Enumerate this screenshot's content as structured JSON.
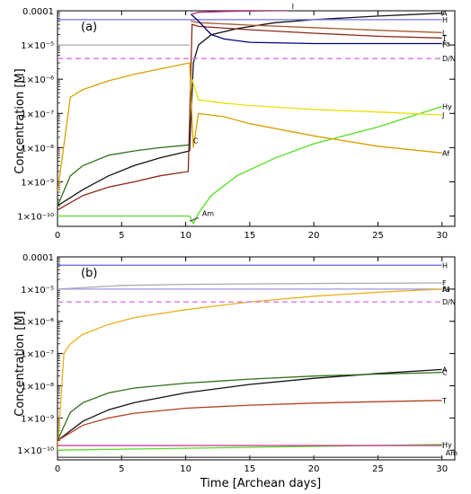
{
  "figure": {
    "xlabel": "Time [Archean days]",
    "ylabel_a": "Concentration [M]",
    "ylabel_b": "Concentration [M]"
  },
  "chart_data": [
    {
      "type": "line",
      "panel": "(a)",
      "yscale": "log",
      "xlim": [
        0,
        31
      ],
      "ylim": [
        5e-11,
        0.0001
      ],
      "x_ticks": [
        0,
        5,
        10,
        15,
        20,
        25,
        30
      ],
      "x_tick_labels": [
        "0",
        "5",
        "10",
        "15",
        "20",
        "25",
        "30"
      ],
      "y_ticks": [
        1e-10,
        1e-09,
        1e-08,
        1e-07,
        1e-06,
        1e-05,
        0.0001
      ],
      "y_tick_labels": [
        "1×10⁻¹⁰",
        "1×10⁻⁹",
        "1×10⁻⁸",
        "1×10⁻⁷",
        "1×10⁻⁶",
        "1×10⁻⁵",
        "0.0001"
      ],
      "series": [
        {
          "name": "A",
          "color": "#111111",
          "x": [
            0,
            2,
            4,
            6,
            8,
            10.3,
            10.6,
            11,
            12,
            14,
            17,
            20,
            25,
            30
          ],
          "y": [
            2e-10,
            6e-10,
            1.5e-09,
            3e-09,
            5e-09,
            8e-09,
            3e-06,
            1e-05,
            2e-05,
            3e-05,
            4.5e-05,
            5.5e-05,
            7e-05,
            8.5e-05
          ]
        },
        {
          "name": "H",
          "color": "#6f6fef",
          "x": [
            0,
            30
          ],
          "y": [
            5.5e-05,
            5.5e-05
          ]
        },
        {
          "name": "L",
          "color": "#a55a2a",
          "x": [
            10.4,
            11,
            15,
            20,
            25,
            30
          ],
          "y": [
            5e-05,
            4.5e-05,
            3.8e-05,
            3.2e-05,
            2.7e-05,
            2.3e-05
          ]
        },
        {
          "name": "T",
          "color": "#8a2a1a",
          "x": [
            0,
            2,
            4,
            6,
            8,
            10.2,
            10.5,
            11,
            15,
            20,
            25,
            30
          ],
          "y": [
            1.5e-10,
            4e-10,
            7e-10,
            1e-09,
            1.5e-09,
            2e-09,
            4e-05,
            3.5e-05,
            2.8e-05,
            2.2e-05,
            1.8e-05,
            1.6e-05
          ]
        },
        {
          "name": "Fa",
          "color": "#00007a",
          "x": [
            10.4,
            11,
            12,
            13,
            15,
            20,
            25,
            30
          ],
          "y": [
            8e-05,
            5e-05,
            2e-05,
            1.5e-05,
            1.2e-05,
            1.1e-05,
            1.1e-05,
            1.1e-05
          ]
        },
        {
          "name": "D/N",
          "color": "#d070e0",
          "dash": true,
          "x": [
            0,
            30
          ],
          "y": [
            4e-06,
            4e-06
          ]
        },
        {
          "name": "Hy",
          "color": "#55dd22",
          "x": [
            0,
            10.3,
            10.6,
            11,
            12,
            14,
            17,
            20,
            25,
            30
          ],
          "y": [
            1e-10,
            1e-10,
            6e-11,
            1.2e-10,
            4e-10,
            1.5e-09,
            5e-09,
            1.3e-08,
            4e-08,
            1.6e-07
          ]
        },
        {
          "name": "J",
          "color": "#e8e000",
          "x": [
            10.5,
            11,
            13,
            15,
            20,
            25,
            30
          ],
          "y": [
            1e-06,
            2.5e-07,
            2e-07,
            1.7e-07,
            1.3e-07,
            1.1e-07,
            9e-08
          ]
        },
        {
          "name": "Af",
          "color": "#d8a000",
          "x": [
            0,
            1,
            2,
            4,
            6,
            8,
            10.3,
            10.6,
            11,
            13,
            15,
            20,
            25,
            30
          ],
          "y": [
            5e-10,
            3e-07,
            5e-07,
            9e-07,
            1.4e-06,
            2e-06,
            3e-06,
            1e-08,
            1e-07,
            8e-08,
            5e-08,
            2.2e-08,
            1.1e-08,
            7e-09
          ]
        },
        {
          "name": "I",
          "color": "#c62d8a",
          "x": [
            10.5,
            11,
            13,
            15,
            17,
            18
          ],
          "y": [
            8e-05,
            9e-05,
            9.5e-05,
            9.8e-05,
            0.0001,
            0.0001
          ]
        },
        {
          "name": "C",
          "color": "#2f6f1a",
          "x": [
            0,
            1,
            2,
            4,
            6,
            8,
            10.3
          ],
          "y": [
            2e-10,
            1.5e-09,
            3e-09,
            6e-09,
            8e-09,
            1e-08,
            1.2e-08
          ]
        },
        {
          "name": "F",
          "color": "#aaaaaa",
          "x": [
            0,
            10.3
          ],
          "y": [
            1e-05,
            1e-05
          ]
        },
        {
          "name": "Am",
          "color": "#555555",
          "x": [
            10.3,
            11
          ],
          "y": [
            7e-11,
            9e-11
          ]
        }
      ],
      "labels_right": [
        "A",
        "H",
        "L",
        "T",
        "Fa",
        "D/N",
        "Hy",
        "J",
        "Af"
      ],
      "labels_inline": [
        "C",
        "I",
        "Am"
      ]
    },
    {
      "type": "line",
      "panel": "(b)",
      "yscale": "log",
      "xlim": [
        0,
        31
      ],
      "ylim": [
        5e-11,
        0.0001
      ],
      "x_ticks": [
        0,
        5,
        10,
        15,
        20,
        25,
        30
      ],
      "x_tick_labels": [
        "0",
        "5",
        "10",
        "15",
        "20",
        "25",
        "30"
      ],
      "y_ticks": [
        1e-10,
        1e-09,
        1e-08,
        1e-07,
        1e-06,
        1e-05,
        0.0001
      ],
      "y_tick_labels": [
        "1×10⁻¹⁰",
        "1×10⁻⁹",
        "1×10⁻⁸",
        "1×10⁻⁷",
        "1×10⁻⁶",
        "1×10⁻⁵",
        "0.0001"
      ],
      "series": [
        {
          "name": "H",
          "color": "#6f6fef",
          "x": [
            0,
            30
          ],
          "y": [
            5.5e-05,
            5.5e-05
          ]
        },
        {
          "name": "F",
          "color": "#aaaaaa",
          "x": [
            0,
            5,
            10,
            20,
            30
          ],
          "y": [
            1e-05,
            1.3e-05,
            1.4e-05,
            1.5e-05,
            1.55e-05
          ]
        },
        {
          "name": "Fa",
          "color": "#9999dd",
          "x": [
            0,
            30
          ],
          "y": [
            1e-05,
            1e-05
          ]
        },
        {
          "name": "Af",
          "color": "#e8b020",
          "x": [
            0,
            0.5,
            1,
            2,
            4,
            6,
            10,
            15,
            20,
            25,
            30
          ],
          "y": [
            1e-10,
            1e-07,
            2e-07,
            4e-07,
            8e-07,
            1.3e-06,
            2.3e-06,
            4e-06,
            6e-06,
            8e-06,
            1e-05
          ]
        },
        {
          "name": "D/N",
          "color": "#d070e0",
          "dash": true,
          "x": [
            0,
            30
          ],
          "y": [
            4e-06,
            4e-06
          ]
        },
        {
          "name": "A",
          "color": "#111111",
          "x": [
            0,
            2,
            4,
            6,
            10,
            15,
            20,
            25,
            30
          ],
          "y": [
            2e-10,
            8e-10,
            1.8e-09,
            3e-09,
            6e-09,
            1.1e-08,
            1.7e-08,
            2.4e-08,
            3.2e-08
          ]
        },
        {
          "name": "C",
          "color": "#2f6f1a",
          "x": [
            0,
            1,
            2,
            4,
            6,
            10,
            15,
            20,
            25,
            30
          ],
          "y": [
            2e-10,
            1.5e-09,
            3e-09,
            6e-09,
            8.5e-09,
            1.2e-08,
            1.6e-08,
            2e-08,
            2.3e-08,
            2.6e-08
          ]
        },
        {
          "name": "T",
          "color": "#b04020",
          "x": [
            0,
            2,
            4,
            6,
            10,
            15,
            20,
            25,
            30
          ],
          "y": [
            2e-10,
            6e-10,
            1e-09,
            1.4e-09,
            2e-09,
            2.5e-09,
            2.9e-09,
            3.2e-09,
            3.5e-09
          ]
        },
        {
          "name": "Hy",
          "color": "#55dd22",
          "x": [
            0,
            30
          ],
          "y": [
            1e-10,
            1.5e-10
          ]
        },
        {
          "name": "I",
          "color": "#c62d8a",
          "x": [
            0,
            30
          ],
          "y": [
            1.4e-10,
            1.4e-10
          ]
        },
        {
          "name": "Am",
          "color": "#555555",
          "x": [
            0,
            30
          ],
          "y": [
            6e-11,
            6e-11
          ]
        }
      ],
      "labels_right": [
        "H",
        "F",
        "Fa",
        "Af",
        "D/N",
        "A",
        "C",
        "T",
        "Hy",
        "I"
      ],
      "labels_inline": [
        "Am"
      ]
    }
  ]
}
